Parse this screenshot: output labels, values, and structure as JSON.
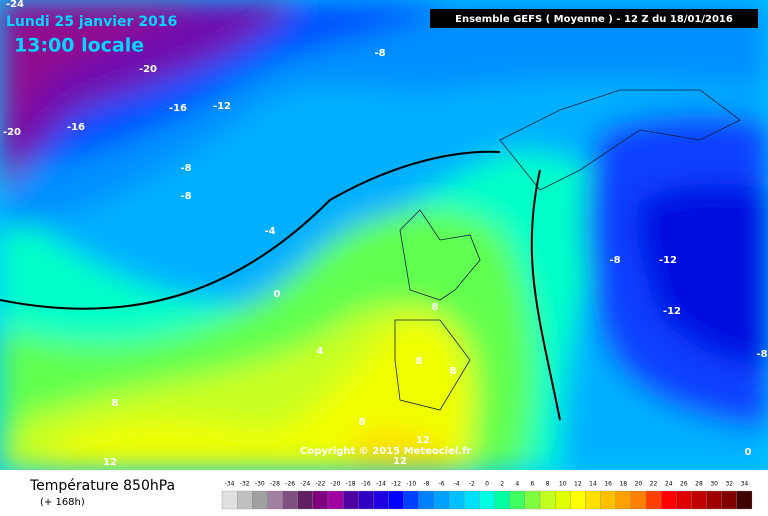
{
  "header": {
    "date": "Lundi 25 janvier 2016",
    "time": "13:00 locale",
    "run": "Ensemble GEFS  ( Moyenne )  -  12 Z du 18/01/2016"
  },
  "map": {
    "contour_labels": [
      "-24",
      "-20",
      "-20",
      "-16",
      "-16",
      "-12",
      "-8",
      "-8",
      "-8",
      "-4",
      "0",
      "4",
      "8",
      "8",
      "8",
      "8",
      "8",
      "12",
      "12",
      "12",
      "-8",
      "-12",
      "-12",
      "-8",
      "0"
    ],
    "copyright": "Copyright © 2015 Meteociel.fr"
  },
  "footer": {
    "title": "Température 850hPa",
    "lead": "(+ 168h)"
  },
  "scale": {
    "labels": [
      -34,
      -32,
      -30,
      -28,
      -26,
      -24,
      -22,
      -20,
      -18,
      -16,
      -14,
      -12,
      -10,
      -8,
      -6,
      -4,
      -2,
      0,
      2,
      4,
      6,
      8,
      10,
      12,
      14,
      16,
      18,
      20,
      22,
      24,
      26,
      28,
      30,
      32,
      34
    ],
    "colors": [
      "#e0e0e0",
      "#c0c0c0",
      "#a0a0a0",
      "#a080a0",
      "#805080",
      "#602060",
      "#800080",
      "#a000a0",
      "#5000a0",
      "#3000c0",
      "#2000e0",
      "#0000ff",
      "#0040ff",
      "#0080ff",
      "#00a0ff",
      "#00c0ff",
      "#00e0ff",
      "#00ffe0",
      "#00ffa0",
      "#40ff60",
      "#80ff40",
      "#c0ff20",
      "#e0ff00",
      "#ffff00",
      "#ffe000",
      "#ffc000",
      "#ffa000",
      "#ff8000",
      "#ff4000",
      "#ff0000",
      "#e00000",
      "#c00000",
      "#a00000",
      "#800000",
      "#400000"
    ]
  }
}
